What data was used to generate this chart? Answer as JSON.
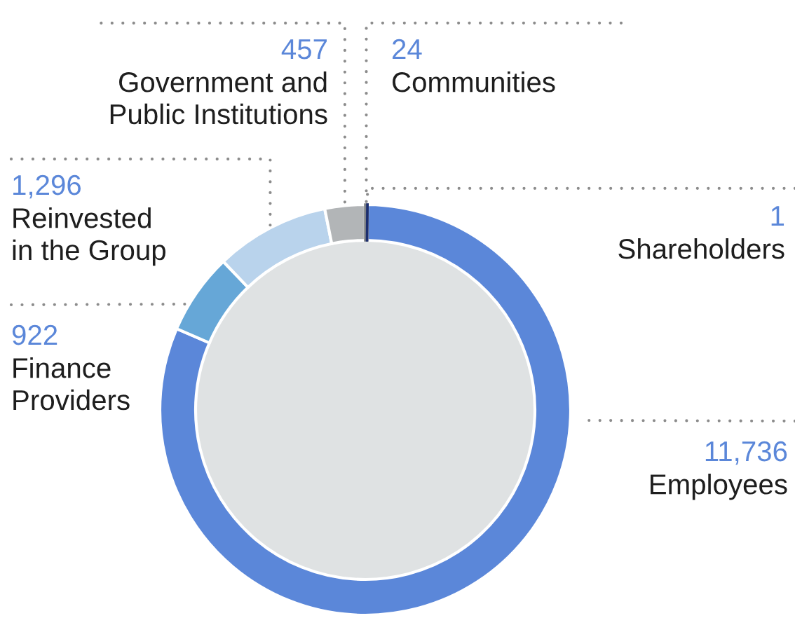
{
  "chart_data": {
    "type": "donut",
    "categories": [
      "Communities",
      "Shareholders",
      "Employees",
      "Finance\nProviders",
      "Reinvested\nin the Group",
      "Government and\nPublic Institutions"
    ],
    "values": [
      24,
      1,
      11736,
      922,
      1296,
      457
    ],
    "colors": [
      "#7f8386",
      "#1c2e6e",
      "#5b87d9",
      "#66a7d7",
      "#b9d3ec",
      "#b2b5b7"
    ],
    "value_labels": [
      "24",
      "1",
      "11,736",
      "922",
      "1,296",
      "457"
    ]
  }
}
